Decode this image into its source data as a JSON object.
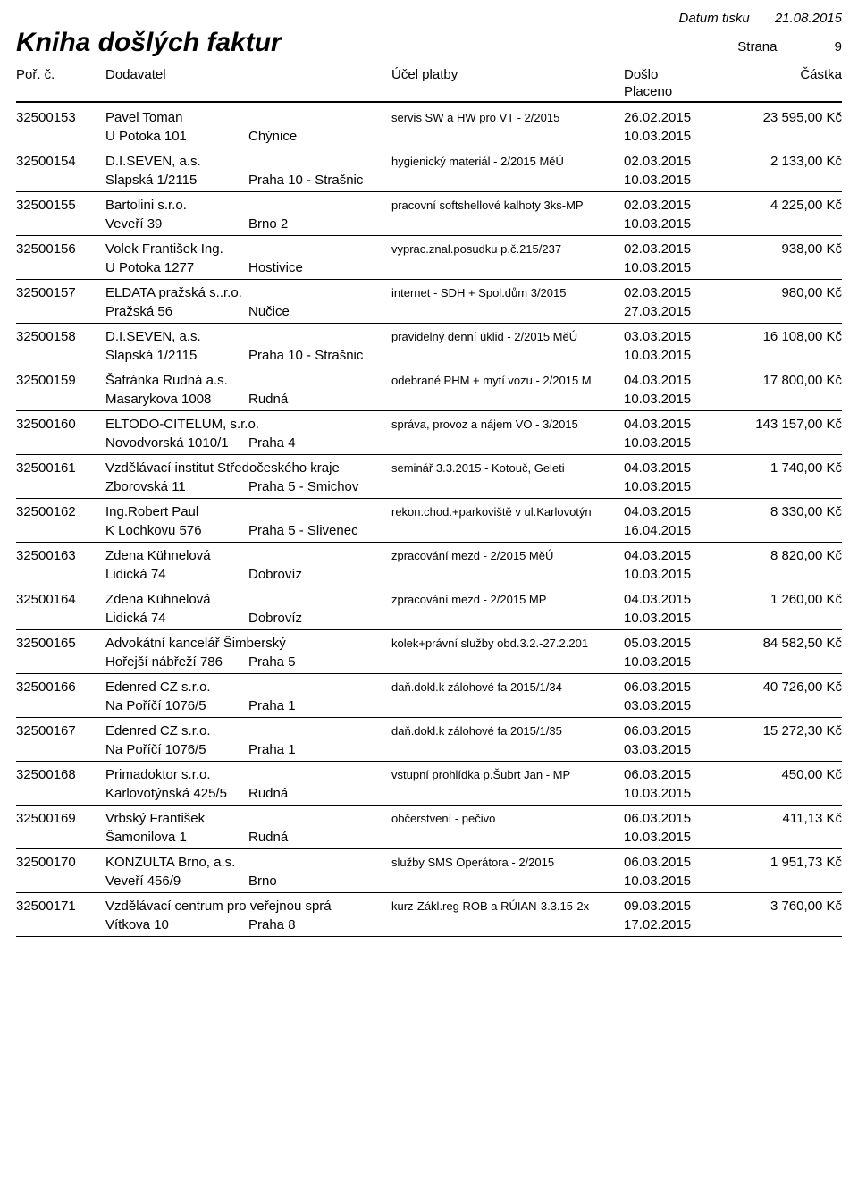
{
  "meta": {
    "print_date_label": "Datum tisku",
    "print_date": "21.08.2015",
    "title": "Kniha došlých faktur",
    "page_label": "Strana",
    "page_number": "9"
  },
  "headers": {
    "por": "Poř. č.",
    "dodavatel": "Dodavatel",
    "ucel": "Účel platby",
    "doslo": "Došlo",
    "placeno": "Placeno",
    "castka": "Částka"
  },
  "rows": [
    {
      "por": "32500153",
      "dod": "Pavel Toman",
      "ucel": "servis SW a HW pro VT - 2/2015",
      "doslo": "26.02.2015",
      "castka": "23 595,00 Kč",
      "addr1": "U Potoka 101",
      "addr2": "Chýnice",
      "placeno": "10.03.2015"
    },
    {
      "por": "32500154",
      "dod": "D.I.SEVEN, a.s.",
      "ucel": "hygienický materiál - 2/2015 MěÚ",
      "doslo": "02.03.2015",
      "castka": "2 133,00 Kč",
      "addr1": "Slapská 1/2115",
      "addr2": "Praha 10 - Strašnic",
      "placeno": "10.03.2015"
    },
    {
      "por": "32500155",
      "dod": "Bartolini s.r.o.",
      "ucel": "pracovní softshellové kalhoty 3ks-MP",
      "doslo": "02.03.2015",
      "castka": "4 225,00 Kč",
      "addr1": "Veveří 39",
      "addr2": "Brno 2",
      "placeno": "10.03.2015"
    },
    {
      "por": "32500156",
      "dod": "Volek František Ing.",
      "ucel": "vyprac.znal.posudku p.č.215/237",
      "doslo": "02.03.2015",
      "castka": "938,00 Kč",
      "addr1": "U Potoka 1277",
      "addr2": "Hostivice",
      "placeno": "10.03.2015"
    },
    {
      "por": "32500157",
      "dod": "ELDATA pražská s..r.o.",
      "ucel": "internet - SDH + Spol.dům 3/2015",
      "doslo": "02.03.2015",
      "castka": "980,00 Kč",
      "addr1": "Pražská 56",
      "addr2": "Nučice",
      "placeno": "27.03.2015"
    },
    {
      "por": "32500158",
      "dod": "D.I.SEVEN, a.s.",
      "ucel": "pravidelný denní úklid - 2/2015 MěÚ",
      "doslo": "03.03.2015",
      "castka": "16 108,00 Kč",
      "addr1": "Slapská 1/2115",
      "addr2": "Praha 10 - Strašnic",
      "placeno": "10.03.2015"
    },
    {
      "por": "32500159",
      "dod": "Šafránka Rudná a.s.",
      "ucel": "odebrané PHM + mytí vozu - 2/2015 M",
      "doslo": "04.03.2015",
      "castka": "17 800,00 Kč",
      "addr1": "Masarykova 1008",
      "addr2": "Rudná",
      "placeno": "10.03.2015"
    },
    {
      "por": "32500160",
      "dod": "ELTODO-CITELUM, s.r.o.",
      "ucel": "správa, provoz a nájem VO - 3/2015",
      "doslo": "04.03.2015",
      "castka": "143 157,00 Kč",
      "addr1": "Novodvorská 1010/1",
      "addr2": "Praha 4",
      "placeno": "10.03.2015"
    },
    {
      "por": "32500161",
      "dod": "Vzdělávací institut Středočeského kraje",
      "ucel": "seminář 3.3.2015 - Kotouč, Geleti",
      "doslo": "04.03.2015",
      "castka": "1 740,00 Kč",
      "addr1": "Zborovská 11",
      "addr2": "Praha 5 - Smichov",
      "placeno": "10.03.2015"
    },
    {
      "por": "32500162",
      "dod": "Ing.Robert Paul",
      "ucel": "rekon.chod.+parkoviště v ul.Karlovotýn",
      "doslo": "04.03.2015",
      "castka": "8 330,00 Kč",
      "addr1": "K Lochkovu 576",
      "addr2": "Praha 5 - Slivenec",
      "placeno": "16.04.2015"
    },
    {
      "por": "32500163",
      "dod": "Zdena Kühnelová",
      "ucel": "zpracování mezd - 2/2015 MěÚ",
      "doslo": "04.03.2015",
      "castka": "8 820,00 Kč",
      "addr1": "Lidická 74",
      "addr2": "Dobrovíz",
      "placeno": "10.03.2015"
    },
    {
      "por": "32500164",
      "dod": "Zdena Kühnelová",
      "ucel": "zpracování mezd - 2/2015 MP",
      "doslo": "04.03.2015",
      "castka": "1 260,00 Kč",
      "addr1": "Lidická 74",
      "addr2": "Dobrovíz",
      "placeno": "10.03.2015"
    },
    {
      "por": "32500165",
      "dod": "Advokátní kancelář Šimberský",
      "ucel": "kolek+právní služby obd.3.2.-27.2.201",
      "doslo": "05.03.2015",
      "castka": "84 582,50 Kč",
      "addr1": "Hořejší nábřeží 786",
      "addr2": "Praha 5",
      "placeno": "10.03.2015"
    },
    {
      "por": "32500166",
      "dod": "Edenred CZ s.r.o.",
      "ucel": "daň.dokl.k zálohové fa 2015/1/34",
      "doslo": "06.03.2015",
      "castka": "40 726,00 Kč",
      "addr1": "Na Poříčí 1076/5",
      "addr2": "Praha 1",
      "placeno": "03.03.2015"
    },
    {
      "por": "32500167",
      "dod": "Edenred CZ s.r.o.",
      "ucel": "daň.dokl.k zálohové fa 2015/1/35",
      "doslo": "06.03.2015",
      "castka": "15 272,30 Kč",
      "addr1": "Na Poříčí 1076/5",
      "addr2": "Praha 1",
      "placeno": "03.03.2015"
    },
    {
      "por": "32500168",
      "dod": "Primadoktor s.r.o.",
      "ucel": "vstupní prohlídka p.Šubrt Jan - MP",
      "doslo": "06.03.2015",
      "castka": "450,00 Kč",
      "addr1": "Karlovotýnská 425/5",
      "addr2": "Rudná",
      "placeno": "10.03.2015"
    },
    {
      "por": "32500169",
      "dod": "Vrbský František",
      "ucel": "občerstvení - pečivo",
      "doslo": "06.03.2015",
      "castka": "411,13 Kč",
      "addr1": "Šamonilova 1",
      "addr2": "Rudná",
      "placeno": "10.03.2015"
    },
    {
      "por": "32500170",
      "dod": "KONZULTA Brno, a.s.",
      "ucel": "služby SMS Operátora - 2/2015",
      "doslo": "06.03.2015",
      "castka": "1 951,73 Kč",
      "addr1": "Veveří 456/9",
      "addr2": "Brno",
      "placeno": "10.03.2015"
    },
    {
      "por": "32500171",
      "dod": "Vzdělávací centrum pro veřejnou sprá",
      "ucel": "kurz-Zákl.reg ROB a RÚIAN-3.3.15-2x",
      "doslo": "09.03.2015",
      "castka": "3 760,00 Kč",
      "addr1": "Vítkova 10",
      "addr2": "Praha 8",
      "placeno": "17.02.2015"
    }
  ]
}
